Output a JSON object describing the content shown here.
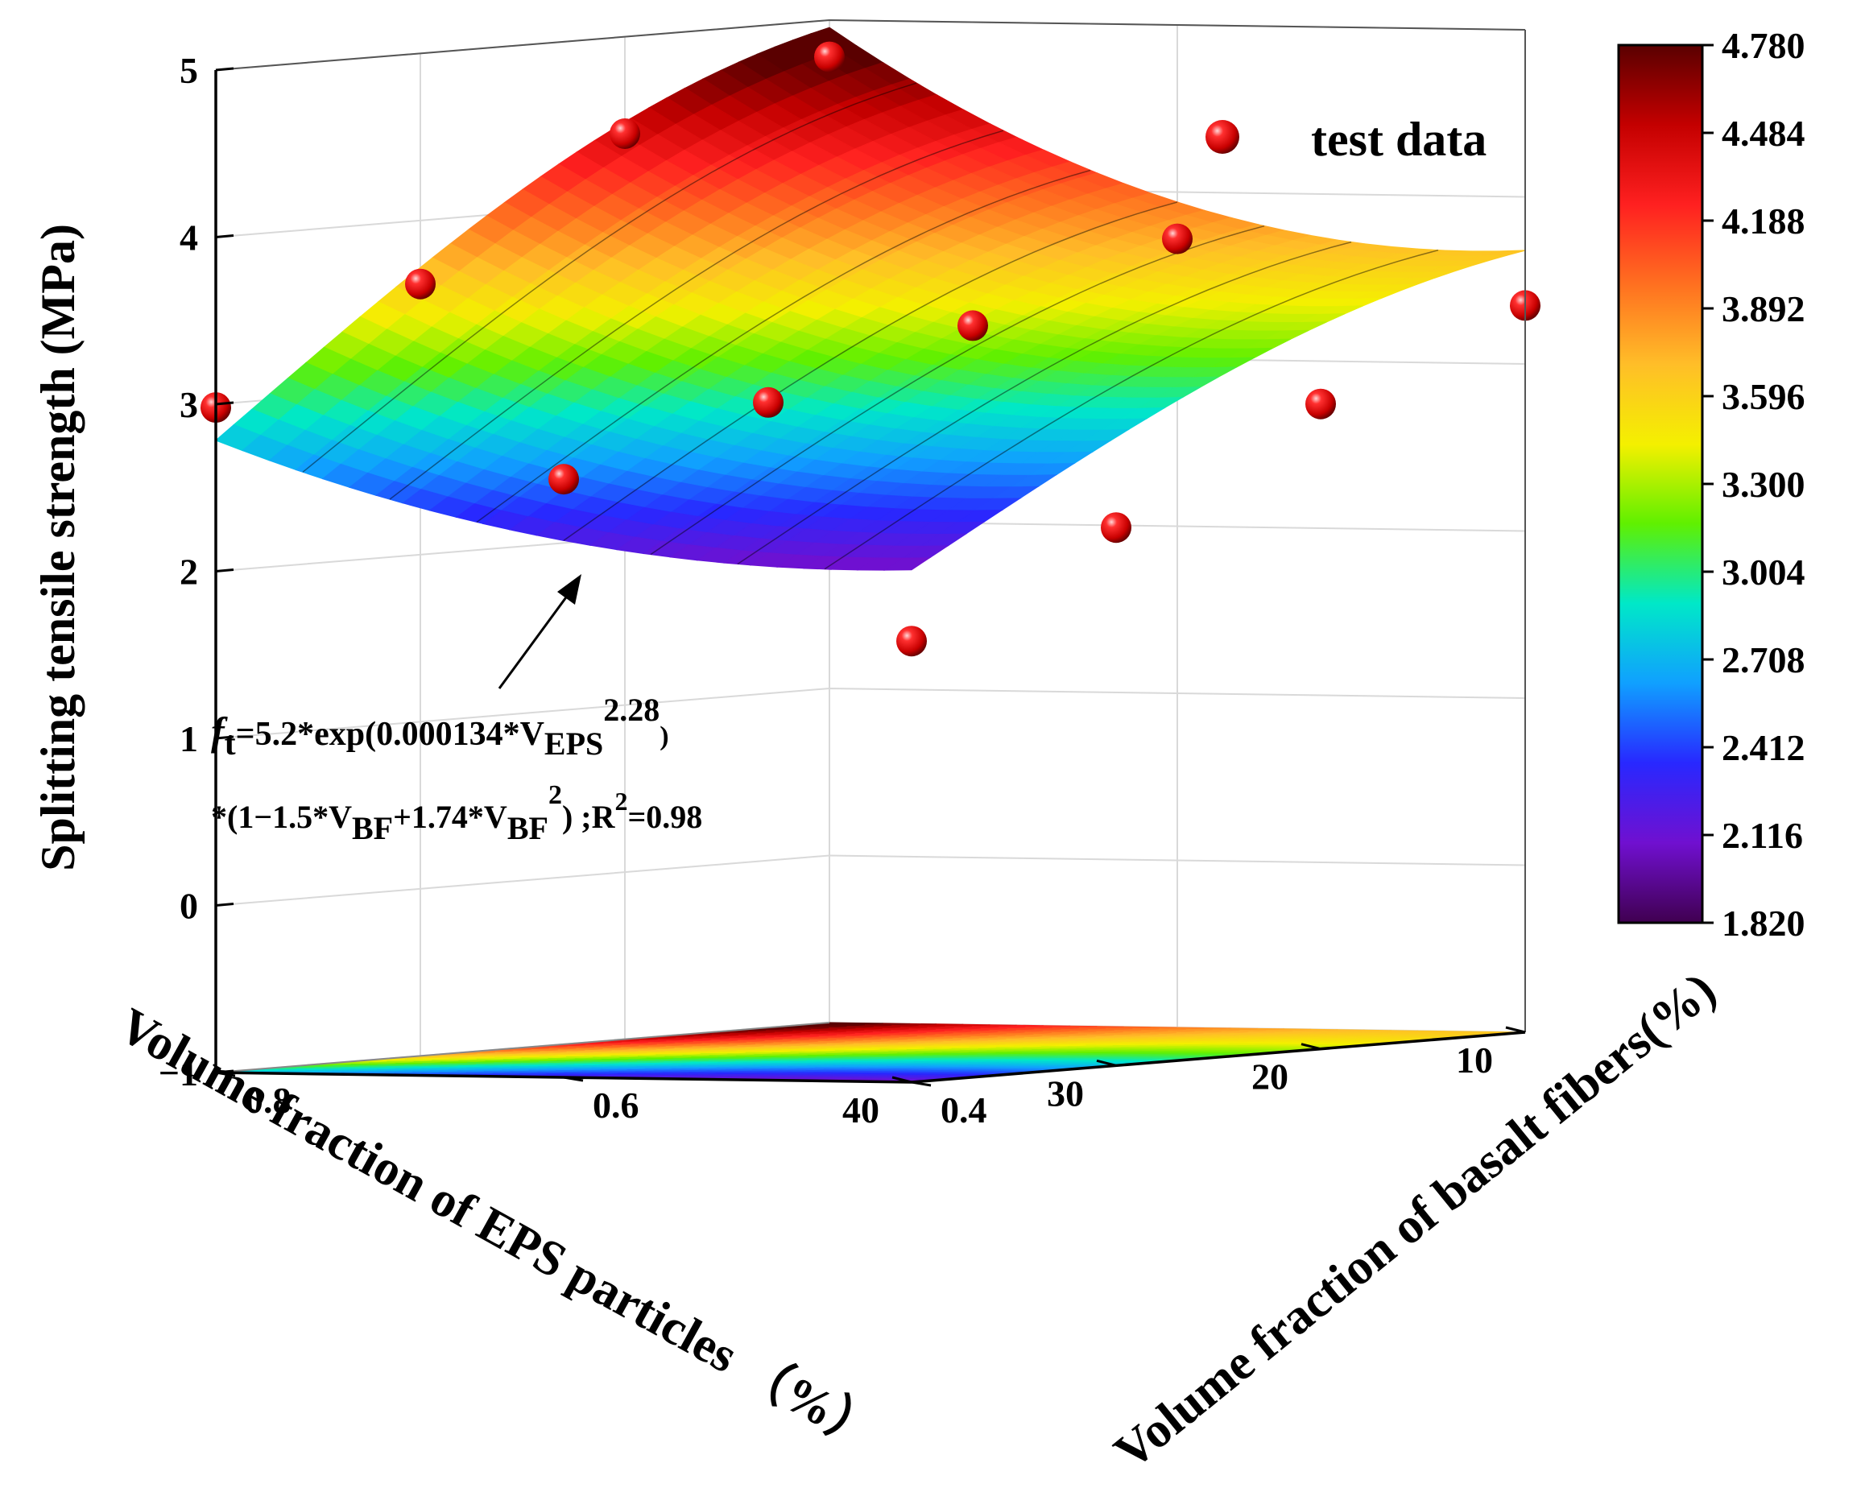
{
  "chart_data": {
    "type": "surface3d",
    "title": "",
    "xlabel": "Volume fraction of EPS particles （%）",
    "ylabel": "Volume fraction of basalt fibers(%)",
    "zlabel": "Splitting tensile strength (MPa)",
    "xlim": [
      10,
      40
    ],
    "ylim": [
      0.4,
      0.8
    ],
    "zlim": [
      -1,
      5
    ],
    "x_ticks": [
      "10",
      "20",
      "30",
      "40"
    ],
    "y_ticks": [
      "0.4",
      "0.6",
      "0.8"
    ],
    "z_ticks": [
      "−1",
      "0",
      "1",
      "2",
      "3",
      "4",
      "5"
    ],
    "colorbar": {
      "min": 1.82,
      "max": 4.78,
      "ticks": [
        "4.780",
        "4.484",
        "4.188",
        "3.892",
        "3.596",
        "3.300",
        "3.004",
        "2.708",
        "2.412",
        "2.116",
        "1.820"
      ],
      "colors": [
        "#5a0000",
        "#c40000",
        "#ff2020",
        "#ff7020",
        "#ffbe28",
        "#f4f000",
        "#60f000",
        "#00e8c8",
        "#10a0ff",
        "#2828ff",
        "#7010d0",
        "#400050"
      ]
    },
    "legend": {
      "placement": "top-right",
      "entries": [
        "test data"
      ]
    },
    "annotation": {
      "eq_ft": "f",
      "eq_ft_sub": "t",
      "eq_part1": "=5.2*exp(0.000134*V",
      "eq_sub_eps": "EPS",
      "eq_sup_exp": "2.28",
      "eq_close": ")",
      "eq_line2_a": "*(1−1.5*V",
      "eq_sub_bf1": "BF",
      "eq_line2_b": "+1.74*V",
      "eq_sub_bf2": "BF",
      "eq_sup_2": "2",
      "eq_line2_c": ") ;R",
      "eq_sup_r": "2",
      "eq_line2_d": "=0.98"
    },
    "test_data": [
      {
        "eps": 10,
        "bf": 0.4,
        "ft": 3.35
      },
      {
        "eps": 20,
        "bf": 0.4,
        "ft": 2.86
      },
      {
        "eps": 30,
        "bf": 0.4,
        "ft": 2.22
      },
      {
        "eps": 40,
        "bf": 0.4,
        "ft": 1.64
      },
      {
        "eps": 10,
        "bf": 0.6,
        "ft": 3.72
      },
      {
        "eps": 20,
        "bf": 0.6,
        "ft": 3.3
      },
      {
        "eps": 30,
        "bf": 0.6,
        "ft": 2.94
      },
      {
        "eps": 40,
        "bf": 0.6,
        "ft": 2.58
      },
      {
        "eps": 10,
        "bf": 0.8,
        "ft": 4.78
      },
      {
        "eps": 20,
        "bf": 0.8,
        "ft": 4.42
      },
      {
        "eps": 30,
        "bf": 0.8,
        "ft": 3.62
      },
      {
        "eps": 40,
        "bf": 0.8,
        "ft": 2.98
      }
    ]
  }
}
